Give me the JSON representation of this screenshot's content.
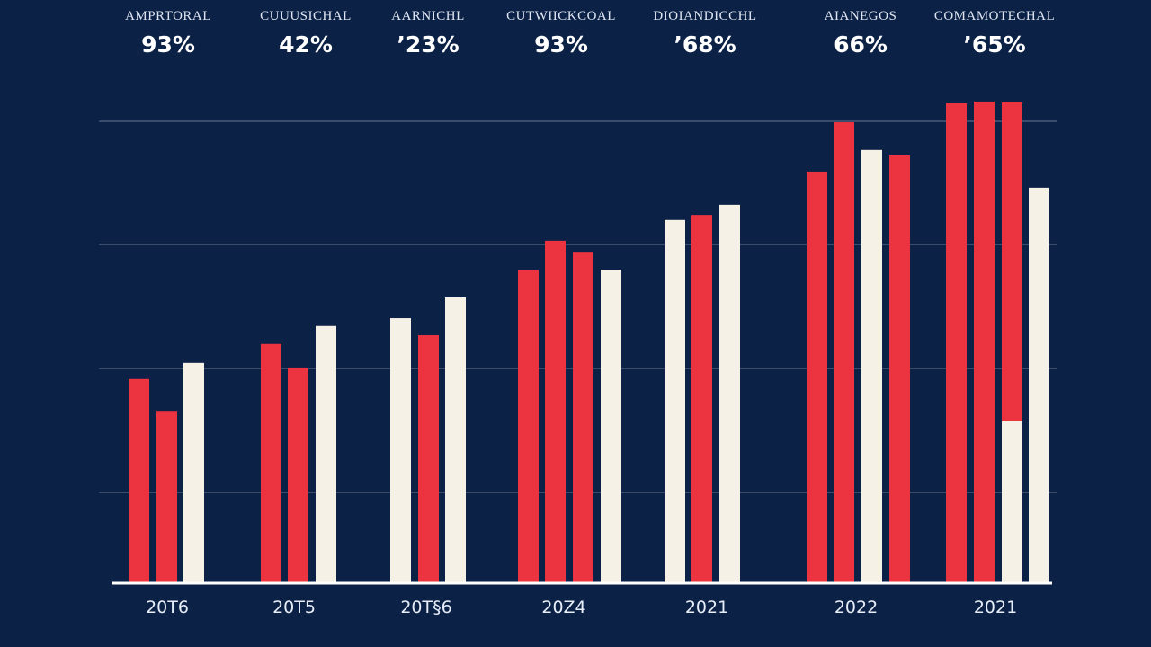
{
  "headers": [
    {
      "label": "AMPRTORAL",
      "value": "93%"
    },
    {
      "label": "CUUUSICHAL",
      "value": "42%"
    },
    {
      "label": "AARNICHL",
      "value": "’23%"
    },
    {
      "label": "CUTWIICKCOAL",
      "value": "93%"
    },
    {
      "label": "DIOIANDICCHL",
      "value": "’68%"
    },
    {
      "label": "AIANEGOS",
      "value": "66%"
    },
    {
      "label": "COMAMOTECHAL",
      "value": "’65%"
    }
  ],
  "colors": {
    "background": "#0c2146",
    "red": "#ec3340",
    "white": "#f6f1e7",
    "grid": "#4a5a78"
  },
  "chart_data": {
    "type": "bar",
    "title": "",
    "xlabel": "",
    "ylabel": "",
    "ylim": [
      0,
      100
    ],
    "grid": true,
    "gridlines": [
      19.5,
      46.4,
      73.3,
      100
    ],
    "categories": [
      "20T6",
      "20T5",
      "20T§6",
      "20Z4",
      "2021",
      "2022",
      "2021"
    ],
    "groups": [
      {
        "bars": [
          {
            "color": "red",
            "value": 44.1
          },
          {
            "color": "red",
            "value": 37.2
          },
          {
            "color": "white",
            "value": 47.6
          }
        ]
      },
      {
        "bars": [
          {
            "color": "red",
            "value": 51.7
          },
          {
            "color": "red",
            "value": 46.6
          },
          {
            "color": "white",
            "value": 55.6
          }
        ]
      },
      {
        "bars": [
          {
            "color": "white",
            "value": 57.3
          },
          {
            "color": "red",
            "value": 53.6
          },
          {
            "color": "white",
            "value": 61.8
          }
        ]
      },
      {
        "bars": [
          {
            "color": "red",
            "value": 67.8
          },
          {
            "color": "red",
            "value": 74.1
          },
          {
            "color": "red",
            "value": 71.7
          },
          {
            "color": "white",
            "value": 67.8
          }
        ]
      },
      {
        "bars": [
          {
            "color": "white",
            "value": 78.6
          },
          {
            "color": "red",
            "value": 79.7
          },
          {
            "color": "white",
            "value": 81.9
          }
        ]
      },
      {
        "bars": [
          {
            "color": "red",
            "value": 89.1
          },
          {
            "color": "red",
            "value": 99.8
          },
          {
            "color": "white",
            "value": 93.8
          },
          {
            "color": "red",
            "value": 92.6
          }
        ]
      },
      {
        "bars": [
          {
            "color": "red",
            "value": 103.9
          },
          {
            "color": "red",
            "value": 104.3
          },
          {
            "color": "red",
            "value": 104.1,
            "white_base": 34.9
          },
          {
            "color": "white",
            "value": 85.6
          }
        ]
      }
    ]
  }
}
